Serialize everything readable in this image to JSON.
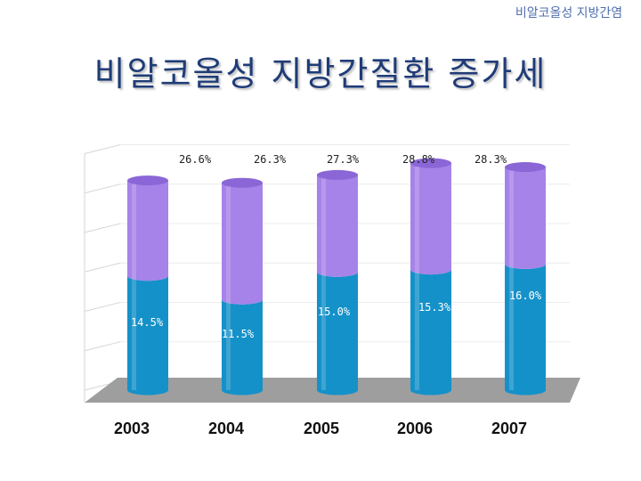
{
  "header": {
    "corner_label": "비알코올성 지방간염",
    "title": "비알코올성 지방간질환 증가세"
  },
  "colors": {
    "upper_segment": "#a683e8",
    "lower_segment": "#1591c9",
    "floor": "#9e9e9e",
    "title": "#1f3c78"
  },
  "chart_data": {
    "type": "bar",
    "stacked": true,
    "categories": [
      "2003",
      "2004",
      "2005",
      "2006",
      "2007"
    ],
    "series": [
      {
        "values": [
          14.5,
          11.5,
          15.0,
          15.3,
          16.0
        ]
      },
      {
        "values": [
          12.1,
          14.8,
          12.3,
          13.5,
          12.3
        ]
      }
    ],
    "total_labels": [
      "26.6%",
      "26.3%",
      "27.3%",
      "28.8%",
      "28.3%"
    ],
    "lower_labels": [
      "14.5%",
      "11.5%",
      "15.0%",
      "15.3%",
      "16.0%"
    ],
    "ylim": [
      0,
      30
    ],
    "grid": true,
    "title": "",
    "xlabel": "",
    "ylabel": ""
  }
}
